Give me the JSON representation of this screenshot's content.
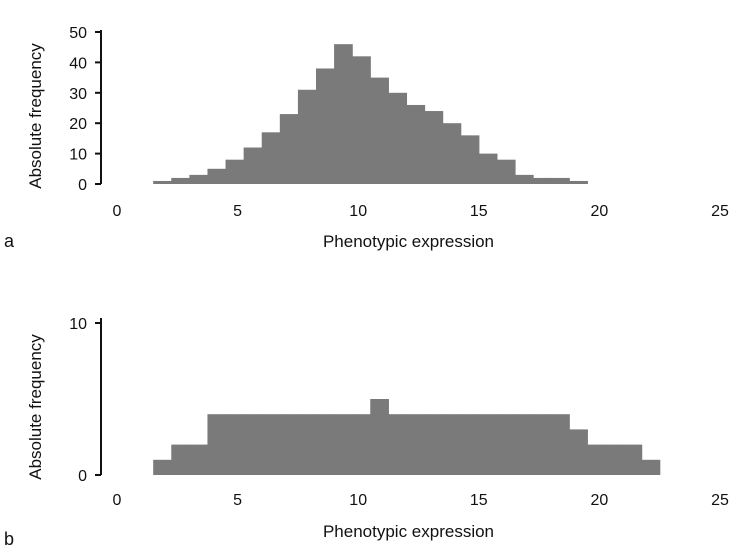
{
  "chart_data": [
    {
      "type": "bar",
      "panel_label": "a",
      "title": "",
      "xlabel": "Phenotypic expression",
      "ylabel": "Absolute frequency",
      "xlim": [
        0,
        25
      ],
      "ylim": [
        0,
        50
      ],
      "xticks": [
        0,
        5,
        10,
        15,
        20,
        25
      ],
      "xtick_labels": [
        "0",
        "5",
        "10",
        "15",
        "20",
        "25"
      ],
      "yticks": [
        0,
        10,
        20,
        30,
        40,
        50
      ],
      "ytick_labels": [
        "0",
        "10",
        "20",
        "30",
        "40",
        "50"
      ],
      "grid": false,
      "bar_color": "#7a7a7a",
      "bin_start": 1.5,
      "bin_width": 0.75,
      "values": [
        1,
        2,
        3,
        5,
        8,
        12,
        17,
        23,
        31,
        38,
        46,
        42,
        35,
        30,
        26,
        24,
        20,
        16,
        10,
        8,
        3,
        2,
        2,
        1
      ]
    },
    {
      "type": "bar",
      "panel_label": "b",
      "title": "",
      "xlabel": "Phenotypic expression",
      "ylabel": "Absolute frequency",
      "xlim": [
        0,
        25
      ],
      "ylim": [
        0,
        10
      ],
      "xticks": [
        0,
        5,
        10,
        15,
        20,
        25
      ],
      "xtick_labels": [
        "0",
        "5",
        "10",
        "15",
        "20",
        "25"
      ],
      "yticks": [
        0,
        10
      ],
      "ytick_labels": [
        "0",
        "10"
      ],
      "grid": false,
      "bar_color": "#7a7a7a",
      "bin_start": 1.5,
      "bin_width": 0.75,
      "values": [
        1,
        2,
        2,
        4,
        4,
        4,
        4,
        4,
        4,
        4,
        4,
        4,
        5,
        4,
        4,
        4,
        4,
        4,
        4,
        4,
        4,
        4,
        4,
        3,
        2,
        2,
        2,
        1
      ]
    }
  ]
}
